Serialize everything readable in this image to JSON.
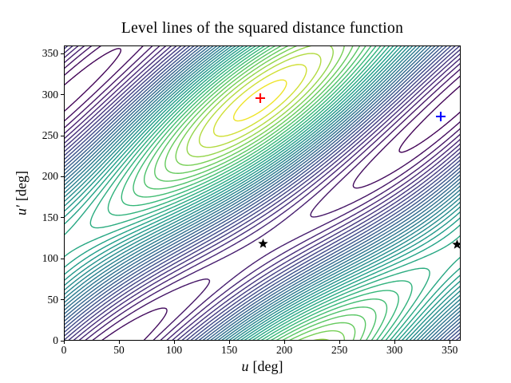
{
  "chart_data": {
    "type": "contour",
    "title": "Level lines of the squared distance function",
    "x_axis": {
      "variable": "u",
      "unit": "[deg]",
      "min": 0,
      "max": 360,
      "ticks": [
        0,
        50,
        100,
        150,
        200,
        250,
        300,
        350
      ]
    },
    "y_axis": {
      "variable": "u′",
      "unit": "[deg]",
      "min": 0,
      "max": 360,
      "ticks": [
        0,
        50,
        100,
        150,
        200,
        250,
        300,
        350
      ]
    },
    "grid": false,
    "legend": false,
    "n_levels": 38,
    "line_width": 1.4,
    "colormap": {
      "name": "viridis",
      "stops": [
        "#440154",
        "#482878",
        "#3e4989",
        "#31688e",
        "#26828e",
        "#1f9e89",
        "#35b779",
        "#6ece58",
        "#fde725"
      ]
    },
    "contour_model": {
      "formula": "f(u,v) = -cos(u - v - phi) + au*cos(u - pu) + av*cos(v - pv)",
      "phi_deg": 65,
      "amp_u": 0.25,
      "phase_u_deg": 178,
      "amp_v": 0.15,
      "phase_v_deg": 293,
      "maximum_uv": [
        178,
        293
      ],
      "minimum_uv": [
        358,
        293
      ],
      "saddles_uv": [
        [
          178,
          113
        ],
        [
          358,
          113
        ]
      ]
    },
    "markers": [
      {
        "id": "red-plus",
        "symbol": "plus",
        "color": "#ff0000",
        "u": 178,
        "v": 296,
        "size": 12,
        "stroke": 2.1
      },
      {
        "id": "blue-plus",
        "symbol": "plus",
        "color": "#0000ff",
        "u": 342,
        "v": 273,
        "size": 12,
        "stroke": 2.1
      },
      {
        "id": "black-star-left",
        "symbol": "star",
        "color": "#000000",
        "u": 181,
        "v": 118,
        "size": 13
      },
      {
        "id": "black-star-right",
        "symbol": "star",
        "color": "#000000",
        "u": 357,
        "v": 117,
        "size": 13
      }
    ]
  }
}
